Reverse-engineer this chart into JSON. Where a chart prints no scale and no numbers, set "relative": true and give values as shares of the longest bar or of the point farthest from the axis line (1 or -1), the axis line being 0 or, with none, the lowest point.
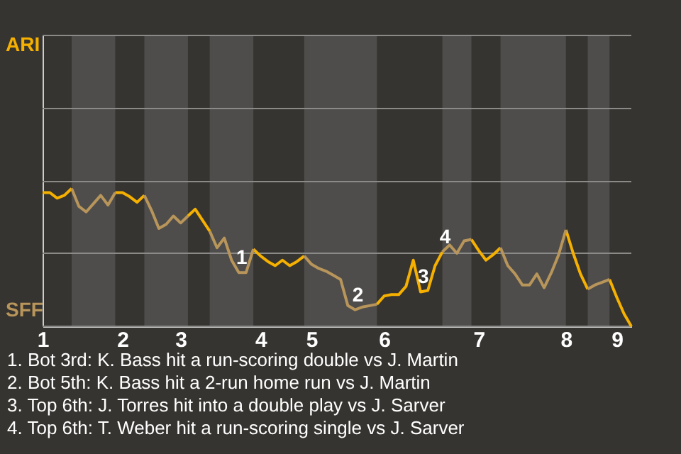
{
  "chart_data": {
    "type": "line",
    "categories": [
      "1",
      null,
      null,
      null,
      null,
      null,
      null,
      null,
      null,
      null,
      null,
      "2",
      null,
      null,
      null,
      null,
      null,
      null,
      null,
      "3",
      null,
      null,
      null,
      null,
      null,
      null,
      null,
      null,
      null,
      null,
      "4",
      null,
      null,
      null,
      null,
      null,
      null,
      "5",
      null,
      null,
      null,
      null,
      null,
      null,
      null,
      null,
      null,
      "6",
      null,
      null,
      null,
      null,
      null,
      null,
      null,
      null,
      null,
      null,
      null,
      null,
      "7",
      null,
      null,
      null,
      null,
      null,
      null,
      null,
      null,
      null,
      null,
      null,
      "8",
      null,
      null,
      null,
      null,
      null,
      null,
      "9",
      null,
      null
    ],
    "relative": true,
    "series": [
      {
        "color": "#f5b000",
        "values": [
          0.97,
          0.97,
          0.93,
          0.95,
          1,
          null,
          null,
          null,
          null,
          null,
          0.97,
          0.97,
          0.94,
          0.9,
          0.95,
          null,
          null,
          null,
          null,
          null,
          0.8,
          0.85,
          0.77,
          0.69,
          null,
          null,
          null,
          null,
          null,
          0.56,
          0.51,
          0.47,
          0.44,
          0.48,
          0.44,
          0.47,
          0.51,
          null,
          null,
          null,
          null,
          null,
          null,
          null,
          null,
          null,
          0.16,
          0.22,
          0.23,
          0.23,
          0.29,
          0.48,
          0.25,
          0.26,
          0.44,
          0.54,
          null,
          null,
          null,
          0.63,
          0.55,
          0.48,
          0.52,
          0.57,
          null,
          null,
          null,
          null,
          null,
          null,
          null,
          null,
          0.7,
          0.53,
          0.38,
          0.27,
          null,
          null,
          0.34,
          0.21,
          0.09,
          0
        ]
      },
      {
        "color": "#b8955a",
        "values": [
          null,
          null,
          null,
          null,
          1,
          0.87,
          0.83,
          0.89,
          0.95,
          0.88,
          0.97,
          null,
          null,
          null,
          0.95,
          0.84,
          0.71,
          0.74,
          0.8,
          0.75,
          0.8,
          null,
          null,
          0.69,
          0.57,
          0.64,
          0.48,
          0.39,
          0.39,
          0.56,
          null,
          null,
          null,
          null,
          null,
          null,
          0.51,
          0.45,
          0.42,
          0.4,
          0.37,
          0.34,
          0.15,
          0.12,
          0.14,
          0.15,
          0.16,
          null,
          null,
          null,
          null,
          null,
          null,
          null,
          null,
          0.54,
          0.59,
          0.53,
          0.62,
          0.63,
          null,
          null,
          null,
          0.57,
          0.44,
          0.38,
          0.3,
          0.3,
          0.38,
          0.28,
          0.39,
          0.52,
          0.7,
          null,
          null,
          0.27,
          0.3,
          0.32,
          0.34,
          null,
          null,
          null
        ]
      }
    ],
    "ref_lines": [
      {
        "axis": "y",
        "value": 0,
        "color": "#8a8a88"
      },
      {
        "axis": "y",
        "value": 0.53,
        "color": "#8a8a88"
      },
      {
        "axis": "y",
        "value": 1.05,
        "color": "#8a8a88"
      },
      {
        "axis": "y",
        "value": 1.58,
        "color": "#8a8a88"
      },
      {
        "axis": "y",
        "value": 2.11,
        "color": "#8a8a88"
      }
    ],
    "tick_labels": "x",
    "line_style": "solid",
    "marker": "none",
    "annotations": [
      "ARI",
      "SFF",
      {
        "text": "1",
        "y": 0.39
      },
      {
        "text": "2",
        "y": 0.12
      },
      {
        "text": "3",
        "y": 0.25
      },
      {
        "text": "4",
        "y": 0.54
      },
      "1. Bot 3rd: K. Bass hit a run-scoring double vs J. Martin",
      "2. Bot 5th: K. Bass hit a 2-run home run vs J. Martin",
      "3. Top 6th: J. Torres hit into a double play vs J. Sarver",
      "4. Top 6th: T. Weber hit a run-scoring single vs J. Sarver"
    ]
  }
}
